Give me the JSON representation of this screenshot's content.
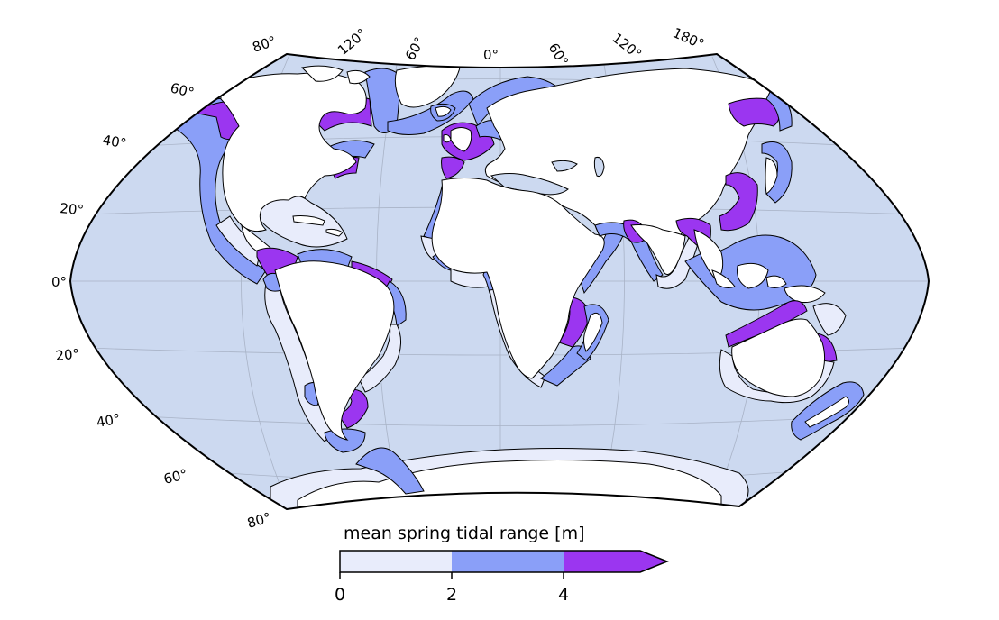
{
  "map": {
    "projection": "winkel-tripel-like",
    "ocean_color": "#ccd9f0",
    "land_color": "#ffffff",
    "coast_color": "#000000",
    "graticule_color": "#9aa3b5",
    "longitude_labels": [
      "80°",
      "120°",
      "60°",
      "0°",
      "60°",
      "120°",
      "180°"
    ],
    "latitude_labels": [
      "60°",
      "40°",
      "20°",
      "0°",
      "20°",
      "40°",
      "60°",
      "80°"
    ]
  },
  "legend": {
    "title": "mean spring tidal range [m]",
    "ticks": [
      "0",
      "2",
      "4"
    ],
    "bins": [
      {
        "range": "0-2",
        "color": "#e8ecfb"
      },
      {
        "range": "2-4",
        "color": "#8a9ff8"
      },
      {
        "range": ">4",
        "color": "#9b36f0"
      }
    ],
    "extend": "max"
  },
  "coastal_bands": [
    {
      "region": "Alaska / NW North America",
      "class": ">4"
    },
    {
      "region": "US West Coast",
      "class": "2-4"
    },
    {
      "region": "Mexico Pacific",
      "class": "0-2"
    },
    {
      "region": "Gulf of Mexico",
      "class": "0-2"
    },
    {
      "region": "Panama / Colombia Pacific",
      "class": ">4"
    },
    {
      "region": "Peru / Chile",
      "class": "0-2"
    },
    {
      "region": "Patagonia",
      "class": ">4"
    },
    {
      "region": "Brazil North",
      "class": ">4"
    },
    {
      "region": "Bay of Fundy",
      "class": ">4"
    },
    {
      "region": "Hudson Bay",
      "class": ">4"
    },
    {
      "region": "British Isles / France",
      "class": ">4"
    },
    {
      "region": "West Africa",
      "class": "2-4"
    },
    {
      "region": "Mozambique / Madagascar",
      "class": ">4"
    },
    {
      "region": "Gulf of Khambhat",
      "class": ">4"
    },
    {
      "region": "Bay of Bengal",
      "class": ">4"
    },
    {
      "region": "Yellow Sea / Korea",
      "class": ">4"
    },
    {
      "region": "Sea of Okhotsk",
      "class": ">4"
    },
    {
      "region": "NW Australia",
      "class": ">4"
    },
    {
      "region": "Queensland",
      "class": ">4"
    }
  ]
}
